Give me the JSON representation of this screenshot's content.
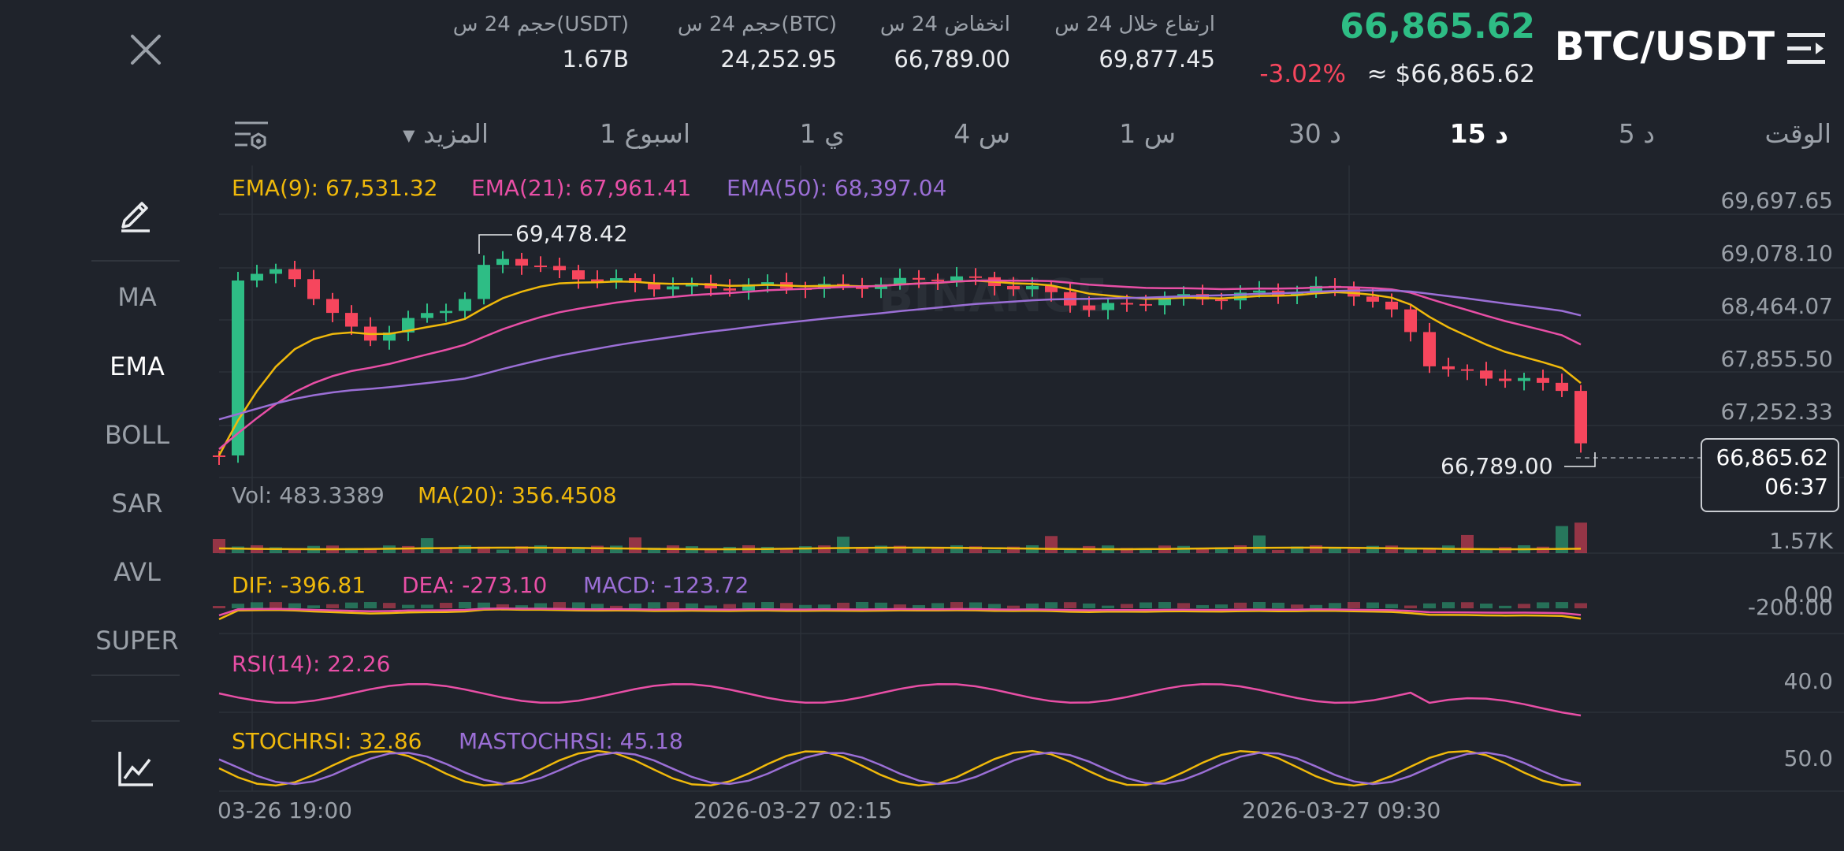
{
  "header": {
    "pair": "BTC/USDT",
    "last_price": "66,865.62",
    "usd_price": "≈ $66,865.62",
    "change_pct": "-3.02%",
    "stats": [
      {
        "label": "ارتفاع خلال 24 س",
        "value": "69,877.45"
      },
      {
        "label": "انخفاض 24 س",
        "value": "66,789.00"
      },
      {
        "label": "حجم 24 س(BTC)",
        "value": "24,252.95"
      },
      {
        "label": "حجم 24 س(USDT)",
        "value": "1.67B"
      }
    ]
  },
  "timeframes": {
    "time_label": "الوقت",
    "items": [
      "5 د",
      "15 د",
      "30 د",
      "1 س",
      "4 س",
      "1 ي",
      "1 اسبوع"
    ],
    "active": "15 د",
    "more_label": "المزيد"
  },
  "sidebar": {
    "items": [
      "MA",
      "EMA",
      "BOLL",
      "SAR",
      "AVL",
      "SUPER"
    ],
    "active": "EMA"
  },
  "indicators": {
    "ema9": "EMA(9): 67,531.32",
    "ema21": "EMA(21): 67,961.41",
    "ema50": "EMA(50): 68,397.04",
    "vol": "Vol: 483.3389",
    "vol_ma": "MA(20): 356.4508",
    "dif": "DIF: -396.81",
    "dea": "DEA: -273.10",
    "macd": "MACD: -123.72",
    "rsi": "RSI(14): 22.26",
    "stochrsi": "STOCHRSI: 32.86",
    "mastochrsi": "MASTOCHRSI: 45.18"
  },
  "price_axis": [
    "69,697.65",
    "69,078.10",
    "68,464.07",
    "67,855.50",
    "67,252.33"
  ],
  "current_price_box": {
    "price": "66,865.62",
    "countdown": "06:37"
  },
  "annotations": {
    "high": "69,478.42",
    "low": "66,789.00"
  },
  "vol_axis": "1.57K",
  "macd_axis": [
    "0.00",
    "-200.00"
  ],
  "rsi_axis": "40.0",
  "stoch_axis": "50.0",
  "watermark": "BINANCE",
  "x_axis": [
    "03-26 19:00",
    "2026-03-27 02:15",
    "2026-03-27 09:30"
  ],
  "colors": {
    "up": "#2ebd85",
    "down": "#f6465d",
    "ema9": "#f0b90b",
    "ema21": "#e84fa6",
    "ema50": "#9b6fd6",
    "bg": "#1f232b"
  },
  "icons": [
    "close-icon",
    "menu-icon",
    "settings-icon",
    "pen-icon",
    "chart-icon"
  ]
}
